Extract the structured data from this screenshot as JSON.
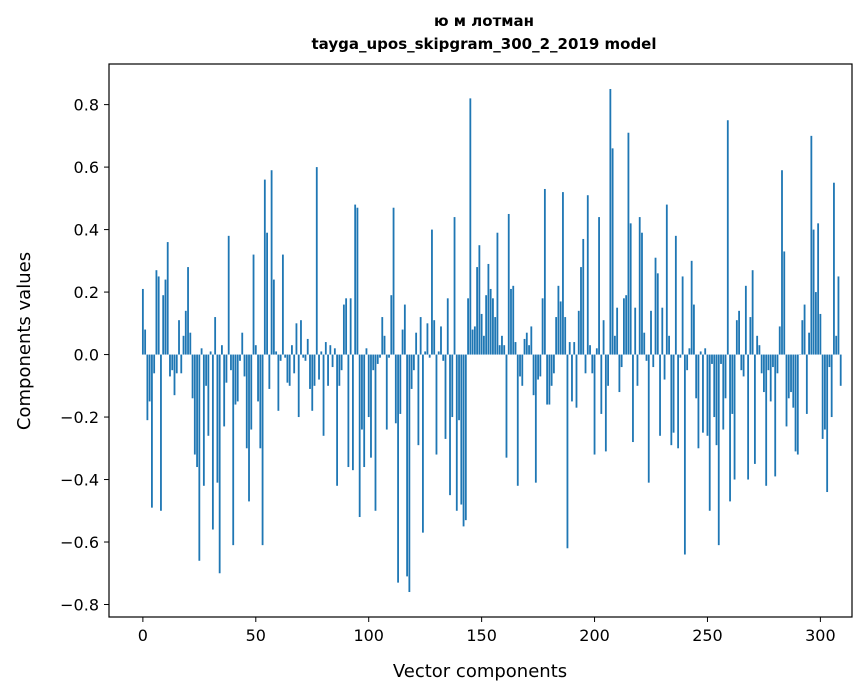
{
  "chart_data": {
    "type": "bar",
    "title": "ю м лотман",
    "subtitle": "tayga_upos_skipgram_300_2_2019 model",
    "xlabel": "Vector components",
    "ylabel": "Components values",
    "xlim": [
      -15,
      314
    ],
    "ylim": [
      -0.84,
      0.93
    ],
    "xticks": [
      0,
      50,
      100,
      150,
      200,
      250,
      300
    ],
    "xtick_labels": [
      "0",
      "50",
      "100",
      "150",
      "200",
      "250",
      "300"
    ],
    "yticks": [
      -0.8,
      -0.6,
      -0.4,
      -0.2,
      0.0,
      0.2,
      0.4,
      0.6,
      0.8
    ],
    "ytick_labels": [
      "−0.8",
      "−0.6",
      "−0.4",
      "−0.2",
      "0.0",
      "0.2",
      "0.4",
      "0.6",
      "0.8"
    ],
    "bar_color": "#1f77b4",
    "values": [
      0.21,
      0.08,
      -0.21,
      -0.15,
      -0.49,
      -0.06,
      0.27,
      0.25,
      -0.5,
      0.19,
      0.24,
      0.36,
      -0.07,
      -0.05,
      -0.13,
      -0.06,
      0.11,
      -0.06,
      0.06,
      0.14,
      0.28,
      0.07,
      -0.14,
      -0.32,
      -0.36,
      -0.66,
      0.02,
      -0.42,
      -0.1,
      -0.26,
      0.01,
      -0.56,
      0.12,
      -0.41,
      -0.7,
      0.03,
      -0.23,
      -0.09,
      0.38,
      -0.05,
      -0.61,
      -0.16,
      -0.15,
      -0.02,
      0.07,
      -0.07,
      -0.3,
      -0.47,
      -0.24,
      0.32,
      0.03,
      -0.15,
      -0.3,
      -0.61,
      0.56,
      0.39,
      -0.11,
      0.59,
      0.24,
      0.01,
      -0.18,
      -0.02,
      0.32,
      -0.01,
      -0.09,
      -0.1,
      0.03,
      -0.06,
      0.1,
      -0.2,
      0.11,
      -0.01,
      -0.02,
      0.05,
      -0.11,
      -0.18,
      -0.1,
      0.6,
      -0.08,
      0.01,
      -0.26,
      0.04,
      -0.1,
      0.03,
      -0.04,
      0.02,
      -0.42,
      -0.1,
      -0.05,
      0.16,
      0.18,
      -0.36,
      0.18,
      -0.37,
      0.48,
      0.47,
      -0.52,
      -0.24,
      -0.36,
      0.02,
      -0.2,
      -0.33,
      -0.05,
      -0.5,
      -0.03,
      -0.01,
      0.12,
      0.06,
      -0.24,
      -0.01,
      0.19,
      0.47,
      -0.22,
      -0.73,
      -0.19,
      0.08,
      0.16,
      -0.71,
      -0.76,
      -0.11,
      -0.05,
      0.07,
      -0.29,
      0.12,
      -0.57,
      0.01,
      0.1,
      -0.01,
      0.4,
      0.11,
      -0.32,
      0.01,
      0.09,
      -0.02,
      -0.27,
      0.18,
      -0.45,
      -0.2,
      0.44,
      -0.5,
      -0.21,
      -0.48,
      -0.55,
      -0.53,
      0.18,
      0.82,
      0.08,
      0.09,
      0.28,
      0.35,
      0.13,
      0.06,
      0.19,
      0.29,
      0.21,
      0.18,
      0.12,
      0.39,
      0.03,
      0.06,
      0.03,
      -0.33,
      0.45,
      0.21,
      0.22,
      0.04,
      -0.42,
      -0.07,
      -0.1,
      0.05,
      0.07,
      0.03,
      0.09,
      -0.13,
      -0.41,
      -0.08,
      -0.07,
      0.18,
      0.53,
      -0.16,
      -0.16,
      -0.1,
      -0.06,
      0.12,
      0.22,
      0.17,
      0.52,
      0.12,
      -0.62,
      0.04,
      -0.15,
      0.04,
      -0.17,
      0.14,
      0.28,
      0.37,
      -0.06,
      0.51,
      0.03,
      -0.06,
      -0.32,
      0.02,
      0.44,
      -0.19,
      0.11,
      -0.31,
      -0.1,
      0.85,
      0.66,
      0.06,
      0.15,
      -0.12,
      -0.04,
      0.18,
      0.19,
      0.71,
      0.42,
      -0.28,
      0.15,
      -0.1,
      0.44,
      0.39,
      0.07,
      -0.02,
      -0.41,
      0.14,
      -0.04,
      0.31,
      0.26,
      -0.26,
      0.15,
      -0.08,
      0.48,
      0.06,
      -0.29,
      -0.25,
      0.38,
      -0.3,
      -0.01,
      0.25,
      -0.64,
      -0.05,
      0.02,
      0.3,
      0.16,
      -0.14,
      -0.3,
      0.01,
      -0.25,
      0.02,
      -0.26,
      -0.5,
      -0.03,
      -0.2,
      -0.29,
      -0.61,
      -0.03,
      -0.24,
      -0.14,
      0.75,
      -0.47,
      -0.19,
      -0.4,
      0.11,
      0.14,
      -0.05,
      -0.07,
      0.22,
      -0.4,
      0.12,
      0.27,
      -0.35,
      0.06,
      0.03,
      -0.06,
      -0.12,
      -0.42,
      -0.05,
      -0.15,
      -0.04,
      -0.39,
      -0.06,
      0.09,
      0.59,
      0.33,
      -0.23,
      -0.14,
      -0.12,
      -0.17,
      -0.31,
      -0.32,
      0.0,
      0.11,
      0.16,
      -0.19,
      0.07,
      0.7,
      0.4,
      0.2,
      0.42,
      0.13,
      -0.27,
      -0.24,
      -0.44,
      -0.04,
      -0.2,
      0.55,
      0.06,
      0.25,
      -0.1
    ]
  }
}
